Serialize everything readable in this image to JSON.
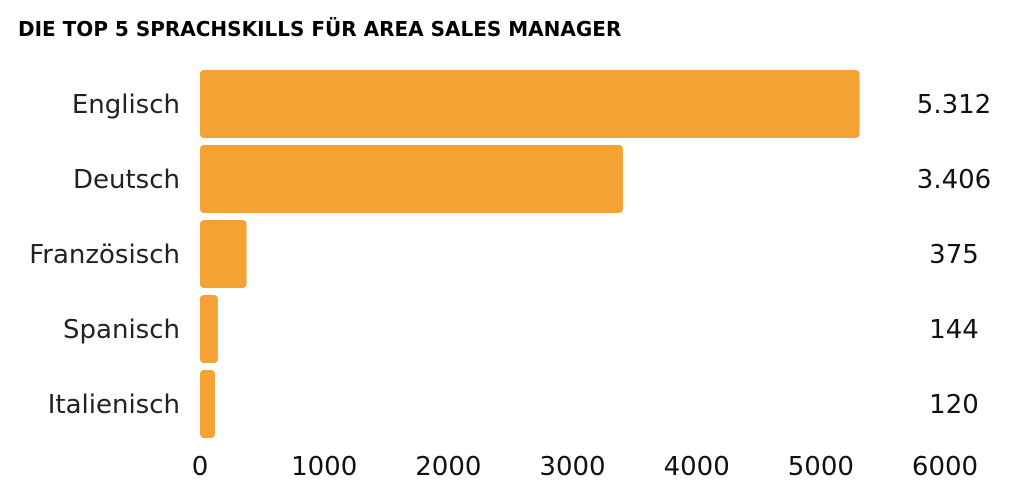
{
  "chart_data": {
    "type": "bar",
    "orientation": "horizontal",
    "title": "DIE TOP 5 SPRACHSKILLS FÜR AREA SALES MANAGER",
    "categories": [
      "Englisch",
      "Deutsch",
      "Französisch",
      "Spanisch",
      "Italienisch"
    ],
    "values": [
      5312,
      3406,
      375,
      144,
      120
    ],
    "value_labels": [
      "5.312",
      "3.406",
      "375",
      "144",
      "120"
    ],
    "xlabel": "",
    "ylabel": "",
    "xlim": [
      0,
      6000
    ],
    "x_ticks": [
      0,
      1000,
      2000,
      3000,
      4000,
      5000,
      6000
    ],
    "grid": false,
    "legend": "none",
    "bar_color": "#F4A233"
  }
}
